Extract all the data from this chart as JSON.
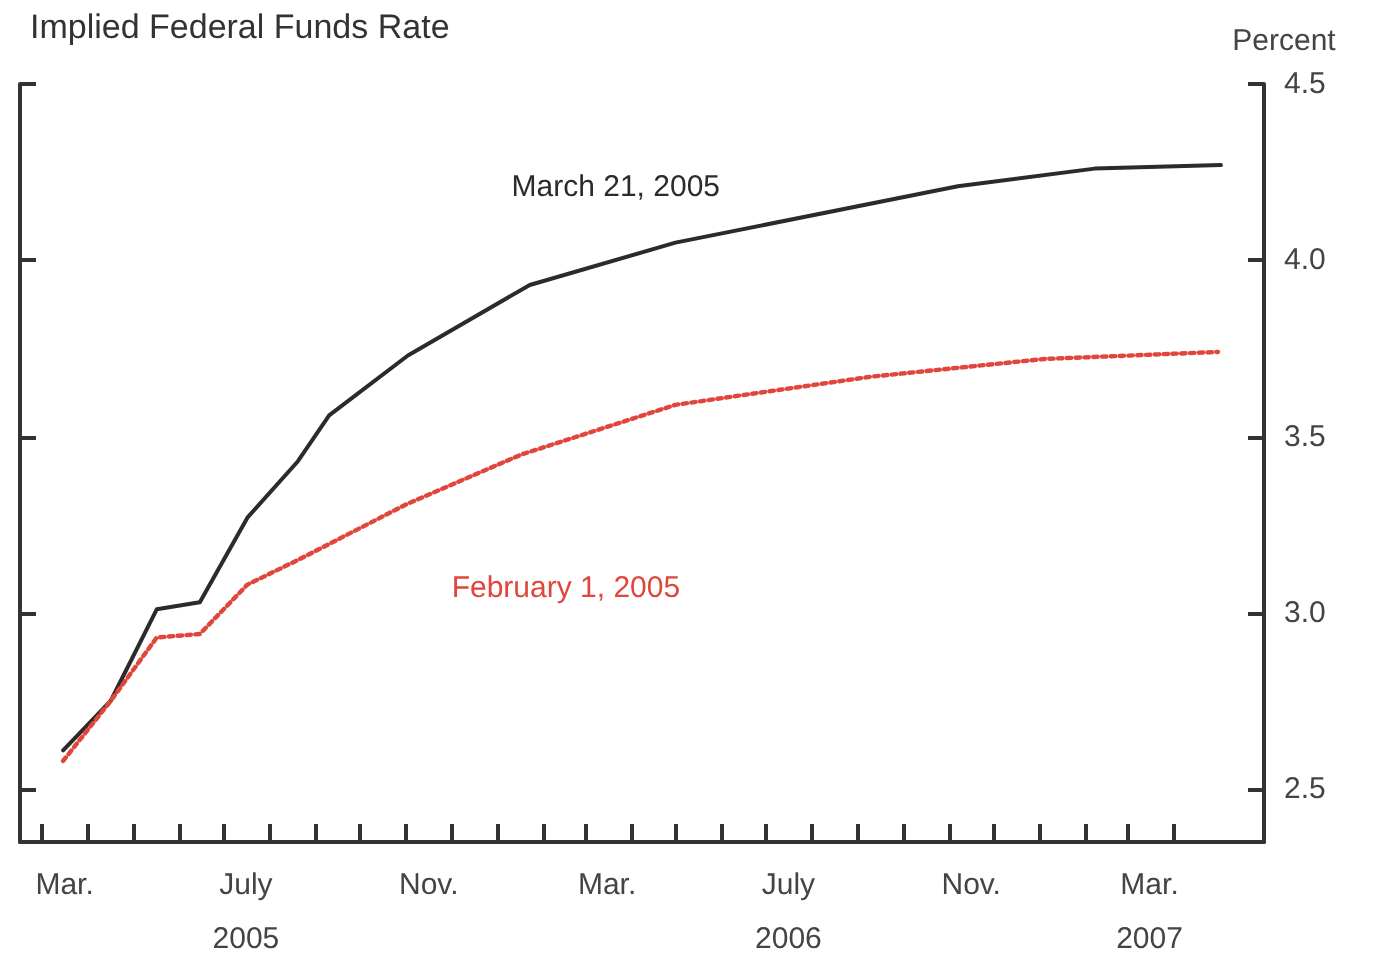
{
  "chart_data": {
    "type": "line",
    "title": "Implied Federal Funds Rate",
    "ylabel": "Percent",
    "xlim": [
      "2005-02-14",
      "2007-06-01"
    ],
    "xticks": [
      {
        "value": "2005-03-01",
        "label": null
      },
      {
        "value": "2005-04-01",
        "label": null
      },
      {
        "value": "2005-05-01",
        "label": null
      },
      {
        "value": "2005-06-01",
        "label": null
      },
      {
        "value": "2005-07-01",
        "label": null
      },
      {
        "value": "2005-08-01",
        "label": null
      },
      {
        "value": "2005-09-01",
        "label": null
      },
      {
        "value": "2005-10-01",
        "label": null
      },
      {
        "value": "2005-11-01",
        "label": null
      },
      {
        "value": "2005-12-01",
        "label": null
      },
      {
        "value": "2006-01-01",
        "label": null
      },
      {
        "value": "2006-02-01",
        "label": null
      },
      {
        "value": "2006-03-01",
        "label": null
      },
      {
        "value": "2006-04-01",
        "label": null
      },
      {
        "value": "2006-05-01",
        "label": null
      },
      {
        "value": "2006-06-01",
        "label": null
      },
      {
        "value": "2006-07-01",
        "label": null
      },
      {
        "value": "2006-08-01",
        "label": null
      },
      {
        "value": "2006-09-01",
        "label": null
      },
      {
        "value": "2006-10-01",
        "label": null
      },
      {
        "value": "2006-11-01",
        "label": null
      },
      {
        "value": "2006-12-01",
        "label": null
      },
      {
        "value": "2007-01-01",
        "label": null
      },
      {
        "value": "2007-02-01",
        "label": null
      },
      {
        "value": "2007-03-01",
        "label": null
      },
      {
        "value": "2007-04-01",
        "label": null
      },
      {
        "value": "2005-03-16",
        "label": "Mar."
      },
      {
        "value": "2005-07-16",
        "label": "July\n2005"
      },
      {
        "value": "2005-11-16",
        "label": "Nov."
      },
      {
        "value": "2006-03-16",
        "label": "Mar."
      },
      {
        "value": "2006-07-16",
        "label": "July\n2006"
      },
      {
        "value": "2006-11-16",
        "label": "Nov."
      },
      {
        "value": "2007-03-16",
        "label": "Mar.\n2007"
      }
    ],
    "ylim": [
      2.35,
      4.5
    ],
    "yticks": [
      2.5,
      {
        "value": 3,
        "label": "3.0"
      },
      3.5,
      {
        "value": 4,
        "label": "4.0"
      },
      4.5
    ],
    "grid": false,
    "legend": false,
    "marker": "none",
    "series": [
      {
        "name": "March 21, 2005",
        "color": "#2b2b2b",
        "line_style": "solid",
        "x": [
          "2005-03-15",
          "2005-04-16",
          "2005-05-17",
          "2005-06-15",
          "2005-07-17",
          "2005-08-20",
          "2005-09-10",
          "2005-11-02",
          "2006-01-23",
          "2006-05-01",
          "2006-11-07",
          "2007-02-07",
          "2007-05-03"
        ],
        "values": [
          2.61,
          2.75,
          3.01,
          3.03,
          3.27,
          3.43,
          3.56,
          3.73,
          3.93,
          4.05,
          4.21,
          4.26,
          4.27
        ]
      },
      {
        "name": "February 1, 2005",
        "color": "#e0463c",
        "line_style": "dotted",
        "x": [
          "2005-03-15",
          "2005-04-16",
          "2005-05-17",
          "2005-06-15",
          "2005-07-17",
          "2005-08-20",
          "2005-11-02",
          "2006-01-18",
          "2006-05-01",
          "2006-09-10",
          "2007-01-04",
          "2007-05-01"
        ],
        "values": [
          2.58,
          2.75,
          2.93,
          2.94,
          3.08,
          3.15,
          3.31,
          3.45,
          3.59,
          3.67,
          3.72,
          3.74
        ]
      }
    ]
  }
}
